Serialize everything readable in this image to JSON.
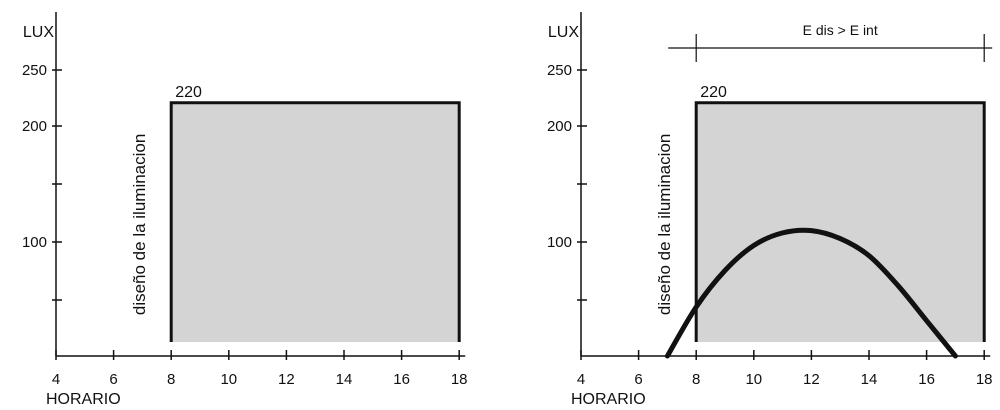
{
  "chart_data": [
    {
      "type": "area",
      "ylabel": "LUX",
      "xlabel": "HORARIO",
      "xlim": [
        4,
        18
      ],
      "x_ticks": [
        4,
        6,
        8,
        10,
        12,
        14,
        16,
        18
      ],
      "y_ticks": [
        250,
        200,
        100
      ],
      "y_minor_ticks": [
        50,
        150
      ],
      "series": [
        {
          "name": "diseño de la iluminacion",
          "x": [
            8,
            8,
            18,
            18
          ],
          "y": [
            0,
            220,
            220,
            0
          ]
        }
      ],
      "annotations": [
        {
          "text": "220",
          "x": 8,
          "y": 220
        }
      ],
      "fill_color": "#d4d4d4",
      "grid": false
    },
    {
      "type": "area",
      "ylabel": "LUX",
      "xlabel": "HORARIO",
      "xlim": [
        4,
        18
      ],
      "x_ticks": [
        4,
        6,
        8,
        10,
        12,
        14,
        16,
        18
      ],
      "y_ticks": [
        250,
        200,
        100
      ],
      "y_minor_ticks": [
        50,
        150
      ],
      "series": [
        {
          "name": "diseño de la iluminacion",
          "x": [
            8,
            8,
            18,
            18
          ],
          "y": [
            0,
            220,
            220,
            0
          ]
        },
        {
          "type": "line",
          "x": [
            7,
            8,
            9,
            10,
            11,
            12,
            13,
            14,
            15,
            16,
            17
          ],
          "y": [
            0,
            43,
            75,
            97,
            108,
            110,
            103,
            88,
            62,
            31,
            0
          ]
        }
      ],
      "annotations": [
        {
          "text": "220",
          "x": 8,
          "y": 220
        },
        {
          "text": "E dis > E int",
          "x_range": [
            8,
            18
          ]
        }
      ],
      "fill_color": "#d4d4d4",
      "grid": false
    }
  ]
}
